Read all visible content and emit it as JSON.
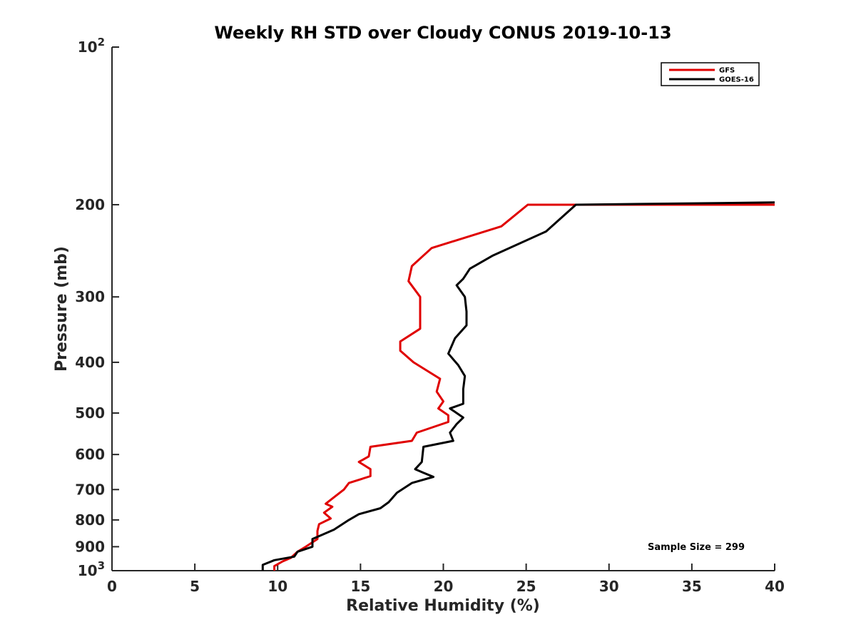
{
  "chart_data": {
    "type": "line",
    "title": "Weekly RH STD over Cloudy CONUS 2019-10-13",
    "xlabel": "Relative Humidity (%)",
    "ylabel": "Pressure (mb)",
    "xlim": [
      0,
      40
    ],
    "ylim": [
      100,
      1000
    ],
    "y_scale": "log",
    "y_reversed": true,
    "grid": false,
    "legend_position": "top-right",
    "x_ticks": [
      0,
      5,
      10,
      15,
      20,
      25,
      30,
      35,
      40
    ],
    "x_tick_labels": [
      "0",
      "5",
      "10",
      "15",
      "20",
      "25",
      "30",
      "35",
      "40"
    ],
    "y_ticks": [
      100,
      200,
      300,
      400,
      500,
      600,
      700,
      800,
      900,
      1000
    ],
    "y_tick_labels": [
      {
        "base": "10",
        "exp": "2"
      },
      {
        "base": "200",
        "exp": ""
      },
      {
        "base": "300",
        "exp": ""
      },
      {
        "base": "400",
        "exp": ""
      },
      {
        "base": "500",
        "exp": ""
      },
      {
        "base": "600",
        "exp": ""
      },
      {
        "base": "700",
        "exp": ""
      },
      {
        "base": "800",
        "exp": ""
      },
      {
        "base": "900",
        "exp": ""
      },
      {
        "base": "10",
        "exp": "3"
      }
    ],
    "series": [
      {
        "name": "GFS",
        "color": "#e00000",
        "points": [
          [
            40.0,
            200
          ],
          [
            25.1,
            200
          ],
          [
            23.5,
            220
          ],
          [
            19.3,
            242
          ],
          [
            18.1,
            262
          ],
          [
            17.9,
            280
          ],
          [
            18.6,
            300
          ],
          [
            18.6,
            345
          ],
          [
            17.4,
            365
          ],
          [
            17.4,
            380
          ],
          [
            18.2,
            400
          ],
          [
            19.8,
            430
          ],
          [
            19.6,
            455
          ],
          [
            20.0,
            475
          ],
          [
            19.7,
            490
          ],
          [
            20.3,
            505
          ],
          [
            20.3,
            520
          ],
          [
            18.4,
            545
          ],
          [
            18.1,
            565
          ],
          [
            15.6,
            580
          ],
          [
            15.5,
            605
          ],
          [
            14.9,
            620
          ],
          [
            15.6,
            640
          ],
          [
            15.6,
            660
          ],
          [
            14.3,
            680
          ],
          [
            14.0,
            700
          ],
          [
            13.5,
            720
          ],
          [
            12.9,
            745
          ],
          [
            13.3,
            755
          ],
          [
            12.8,
            775
          ],
          [
            13.2,
            795
          ],
          [
            12.5,
            815
          ],
          [
            12.4,
            840
          ],
          [
            12.4,
            870
          ],
          [
            11.7,
            900
          ],
          [
            11.2,
            920
          ],
          [
            10.8,
            945
          ],
          [
            10.3,
            960
          ],
          [
            9.8,
            980
          ],
          [
            9.8,
            1000
          ]
        ]
      },
      {
        "name": "GOES-16",
        "color": "#000000",
        "points": [
          [
            40.0,
            198
          ],
          [
            28.0,
            200
          ],
          [
            26.2,
            225
          ],
          [
            23.0,
            250
          ],
          [
            21.6,
            265
          ],
          [
            21.2,
            277
          ],
          [
            20.8,
            285
          ],
          [
            21.3,
            300
          ],
          [
            21.4,
            320
          ],
          [
            21.4,
            340
          ],
          [
            20.7,
            360
          ],
          [
            20.3,
            385
          ],
          [
            20.9,
            405
          ],
          [
            21.3,
            425
          ],
          [
            21.2,
            450
          ],
          [
            21.2,
            480
          ],
          [
            20.4,
            490
          ],
          [
            21.2,
            510
          ],
          [
            20.8,
            525
          ],
          [
            20.4,
            545
          ],
          [
            20.6,
            565
          ],
          [
            18.8,
            580
          ],
          [
            18.7,
            620
          ],
          [
            18.3,
            640
          ],
          [
            18.8,
            650
          ],
          [
            19.4,
            662
          ],
          [
            18.1,
            680
          ],
          [
            17.2,
            710
          ],
          [
            16.7,
            740
          ],
          [
            16.2,
            760
          ],
          [
            14.9,
            780
          ],
          [
            14.3,
            800
          ],
          [
            13.4,
            835
          ],
          [
            12.1,
            870
          ],
          [
            12.1,
            900
          ],
          [
            11.2,
            920
          ],
          [
            11.0,
            940
          ],
          [
            9.8,
            955
          ],
          [
            9.1,
            975
          ],
          [
            9.1,
            1000
          ]
        ]
      }
    ],
    "annotations": [
      "Sample Size = 299"
    ]
  }
}
